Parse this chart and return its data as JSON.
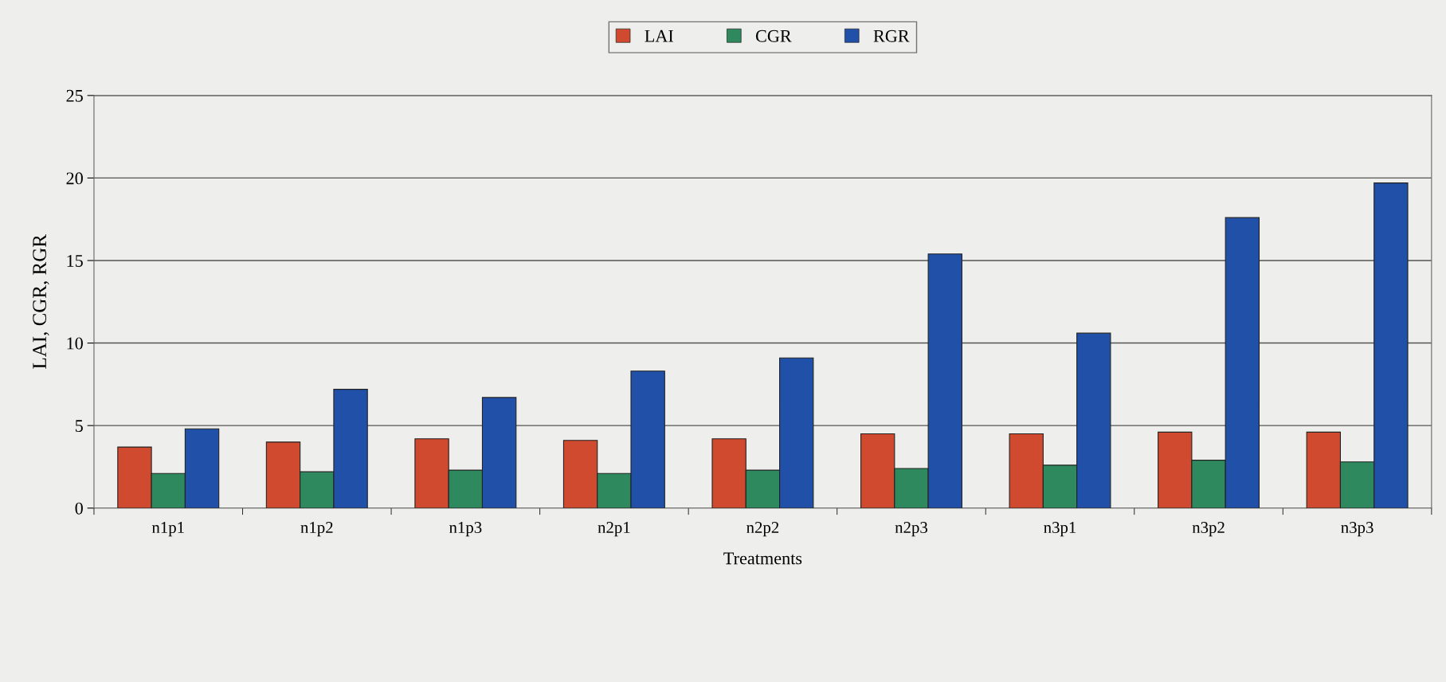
{
  "chart_data": {
    "type": "bar",
    "xlabel": "Treatments",
    "ylabel": "LAI, CGR, RGR",
    "categories": [
      "n1p1",
      "n1p2",
      "n1p3",
      "n2p1",
      "n2p2",
      "n2p3",
      "n3p1",
      "n3p2",
      "n3p3"
    ],
    "series": [
      {
        "name": "LAI",
        "color": "#d04a30",
        "values": [
          3.7,
          4.0,
          4.2,
          4.1,
          4.2,
          4.5,
          4.5,
          4.6,
          4.6
        ]
      },
      {
        "name": "CGR",
        "color": "#2e8a5e",
        "values": [
          2.1,
          2.2,
          2.3,
          2.1,
          2.3,
          2.4,
          2.6,
          2.9,
          2.8
        ]
      },
      {
        "name": "RGR",
        "color": "#2050a8",
        "values": [
          4.8,
          7.2,
          6.7,
          8.3,
          9.1,
          15.4,
          10.6,
          17.6,
          19.7
        ]
      }
    ],
    "ylim": [
      0,
      25
    ],
    "yticks": [
      0,
      5,
      10,
      15,
      20,
      25
    ],
    "grid": "y",
    "legend": "top"
  }
}
